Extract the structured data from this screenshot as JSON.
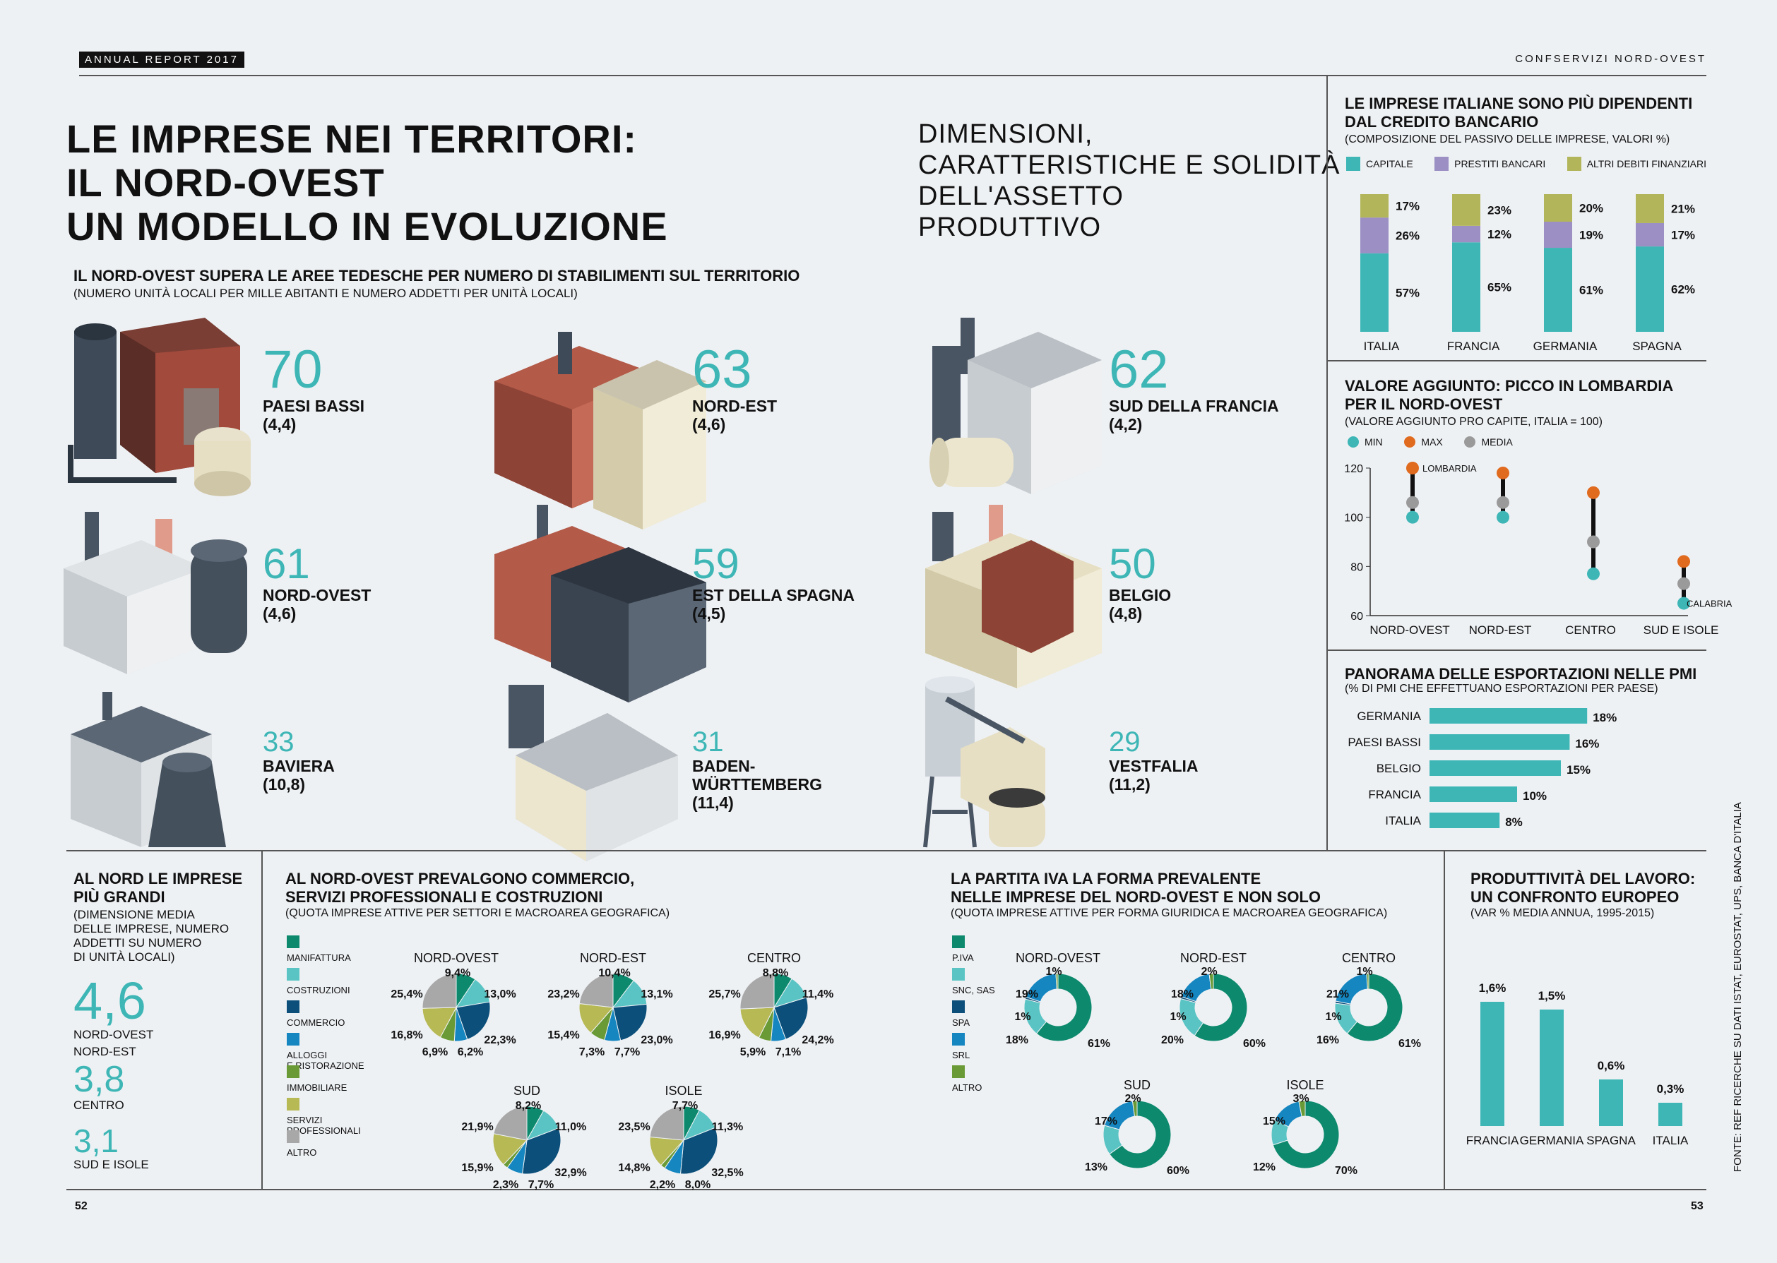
{
  "header": {
    "tag": "ANNUAL REPORT 2017",
    "right": "CONFSERVIZI NORD-OVEST"
  },
  "title": {
    "line1": "LE IMPRESE NEI TERRITORI:",
    "line2": "IL NORD-OVEST",
    "line3": "UN MODELLO IN EVOLUZIONE"
  },
  "subtitle": {
    "line1": "DIMENSIONI,",
    "line2": "CARATTERISTICHE E SOLIDITÀ",
    "line3": "DELL'ASSETTO",
    "line4": "PRODUTTIVO"
  },
  "regions": {
    "title": "IL NORD-OVEST SUPERA LE AREE TEDESCHE PER NUMERO DI STABILIMENTI SUL TERRITORIO",
    "sub": "(NUMERO UNITÀ LOCALI PER MILLE ABITANTI E NUMERO ADDETTI PER UNITÀ LOCALI)",
    "items": [
      {
        "value": "70",
        "name": "PAESI BASSI",
        "extra": "(4,4)"
      },
      {
        "value": "63",
        "name": "NORD-EST",
        "extra": "(4,6)"
      },
      {
        "value": "62",
        "name": "SUD DELLA FRANCIA",
        "extra": "(4,2)"
      },
      {
        "value": "61",
        "name": "NORD-OVEST",
        "extra": "(4,6)"
      },
      {
        "value": "59",
        "name": "EST DELLA SPAGNA",
        "extra": "(4,5)"
      },
      {
        "value": "50",
        "name": "BELGIO",
        "extra": "(4,8)"
      },
      {
        "value": "33",
        "name": "BAVIERA",
        "extra": "(10,8)"
      },
      {
        "value": "31",
        "name": "BADEN-",
        "name2": "WÜRTTEMBERG",
        "extra": "(11,4)"
      },
      {
        "value": "29",
        "name": "VESTFALIA",
        "extra": "(11,2)"
      }
    ]
  },
  "size": {
    "title1": "AL NORD LE IMPRESE",
    "title2": "PIÙ GRANDI",
    "sub1": "(DIMENSIONE MEDIA",
    "sub2": "DELLE IMPRESE, NUMERO",
    "sub3": "ADDETTI SU NUMERO",
    "sub4": "DI UNITÀ LOCALI)",
    "items": [
      {
        "value": "4,6",
        "label1": "NORD-OVEST",
        "label2": "NORD-EST"
      },
      {
        "value": "3,8",
        "label1": "CENTRO"
      },
      {
        "value": "3,1",
        "label1": "SUD E ISOLE"
      }
    ]
  },
  "page_left": "52",
  "page_right": "53",
  "source": "FONTE: REF RICERCHE SU DATI ISTAT, EUROSTAT, UPS, BANCA D'ITALIA",
  "colors": {
    "teal": "#3eb6b6",
    "purple": "#9b8fc4",
    "olive": "#b3b55a",
    "orange": "#e06a1e",
    "grey": "#9a9a9a",
    "dark_green": "#0d8a6e",
    "light_teal": "#5ac4c4",
    "dark_blue": "#0b4f7a",
    "blue": "#1586c0",
    "green": "#6a9a35",
    "olive_light": "#b7b955",
    "light_grey": "#a8a8a8"
  },
  "chart_data": [
    {
      "id": "credito",
      "type": "bar",
      "title": "LE IMPRESE ITALIANE SONO PIÙ DIPENDENTI DAL CREDITO BANCARIO",
      "title1": "LE IMPRESE ITALIANE SONO PIÙ DIPENDENTI",
      "title2": "DAL CREDITO BANCARIO",
      "subtitle": "(COMPOSIZIONE DEL PASSIVO DELLE IMPRESE, VALORI %)",
      "stacked": true,
      "categories": [
        "ITALIA",
        "FRANCIA",
        "GERMANIA",
        "SPAGNA"
      ],
      "series": [
        {
          "name": "CAPITALE",
          "values": [
            57,
            65,
            61,
            62
          ],
          "labels": [
            "57%",
            "65%",
            "61%",
            "62%"
          ]
        },
        {
          "name": "PRESTITI BANCARI",
          "values": [
            26,
            12,
            19,
            17
          ],
          "labels": [
            "26%",
            "12%",
            "19%",
            "17%"
          ]
        },
        {
          "name": "ALTRI DEBITI FINANZIARI",
          "values": [
            17,
            23,
            20,
            21
          ],
          "labels": [
            "17%",
            "23%",
            "20%",
            "21%"
          ]
        }
      ]
    },
    {
      "id": "valore",
      "type": "scatter",
      "title1": "VALORE AGGIUNTO: PICCO IN LOMBARDIA",
      "title2": "PER IL NORD-OVEST",
      "subtitle": "(VALORE AGGIUNTO PRO CAPITE, ITALIA = 100)",
      "legend": [
        "MIN",
        "MAX",
        "MEDIA"
      ],
      "categories": [
        "NORD-OVEST",
        "NORD-EST",
        "CENTRO",
        "SUD E ISOLE"
      ],
      "min": [
        100,
        100,
        77,
        65
      ],
      "max": [
        120,
        118,
        110,
        82
      ],
      "media": [
        106,
        106,
        90,
        73
      ],
      "ylim": [
        60,
        120
      ],
      "yticks": [
        "60",
        "80",
        "100",
        "120"
      ],
      "annotations": [
        {
          "cat": "NORD-OVEST",
          "text": "LOMBARDIA"
        },
        {
          "cat": "SUD E ISOLE",
          "text": "CALABRIA"
        }
      ]
    },
    {
      "id": "export",
      "type": "bar",
      "orientation": "horizontal",
      "title": "PANORAMA DELLE ESPORTAZIONI NELLE PMI",
      "subtitle": "(% DI PMI CHE EFFETTUANO ESPORTAZIONI PER PAESE)",
      "categories": [
        "GERMANIA",
        "PAESI BASSI",
        "BELGIO",
        "FRANCIA",
        "ITALIA"
      ],
      "values": [
        18,
        16,
        15,
        10,
        8
      ],
      "labels": [
        "18%",
        "16%",
        "15%",
        "10%",
        "8%"
      ]
    },
    {
      "id": "settori",
      "type": "pie",
      "title1": "AL NORD-OVEST PREVALGONO COMMERCIO,",
      "title2": "SERVIZI PROFESSIONALI E COSTRUZIONI",
      "subtitle": "(QUOTA IMPRESE ATTIVE PER SETTORI E MACROAREA GEOGRAFICA)",
      "legend": [
        "MANIFATTURA",
        "COSTRUZIONI",
        "COMMERCIO",
        "ALLOGGI",
        "E RISTORAZIONE",
        "IMMOBILIARE",
        "SERVIZI",
        "PROFESSIONALI",
        "ALTRO"
      ],
      "pies": [
        {
          "name": "NORD-OVEST",
          "values": [
            9.4,
            13.0,
            22.3,
            6.2,
            6.9,
            16.8,
            25.4
          ],
          "labels": [
            "9,4%",
            "13,0%",
            "22,3%",
            "6,2%",
            "6,9%",
            "16,8%",
            "25,4%"
          ]
        },
        {
          "name": "NORD-EST",
          "values": [
            10.4,
            13.1,
            23.0,
            7.7,
            7.3,
            15.4,
            23.2
          ],
          "labels": [
            "10,4%",
            "13,1%",
            "23,0%",
            "7,7%",
            "7,3%",
            "15,4%",
            "23,2%"
          ]
        },
        {
          "name": "CENTRO",
          "values": [
            8.8,
            11.4,
            24.2,
            7.1,
            5.9,
            16.9,
            25.7
          ],
          "labels": [
            "8,8%",
            "11,4%",
            "24,2%",
            "7,1%",
            "5,9%",
            "16,9%",
            "25,7%"
          ]
        },
        {
          "name": "SUD",
          "values": [
            8.2,
            11.0,
            32.9,
            7.7,
            2.3,
            15.9,
            21.9
          ],
          "labels": [
            "8,2%",
            "11,0%",
            "32,9%",
            "7,7%",
            "2,3%",
            "15,9%",
            "21,9%"
          ]
        },
        {
          "name": "ISOLE",
          "values": [
            7.7,
            11.3,
            32.5,
            8.0,
            2.2,
            14.8,
            23.5
          ],
          "labels": [
            "7,7%",
            "11,3%",
            "32,5%",
            "8,0%",
            "2,2%",
            "14,8%",
            "23,5%"
          ]
        }
      ]
    },
    {
      "id": "forma",
      "type": "pie",
      "title1": "LA PARTITA IVA LA FORMA PREVALENTE",
      "title2": "NELLE IMPRESE DEL NORD-OVEST E NON SOLO",
      "subtitle": "(QUOTA IMPRESE ATTIVE PER FORMA GIURIDICA E MACROAREA GEOGRAFICA)",
      "legend": [
        "P.IVA",
        "SNC, SAS",
        "SPA",
        "SRL",
        "ALTRO"
      ],
      "donuts": [
        {
          "name": "NORD-OVEST",
          "values": [
            61,
            18,
            1,
            19,
            1
          ],
          "labels": [
            "61%",
            "18%",
            "1%",
            "19%",
            "1%"
          ]
        },
        {
          "name": "NORD-EST",
          "values": [
            60,
            20,
            1,
            18,
            2
          ],
          "labels": [
            "60%",
            "20%",
            "1%",
            "18%",
            "2%"
          ]
        },
        {
          "name": "CENTRO",
          "values": [
            61,
            16,
            1,
            21,
            1
          ],
          "labels": [
            "61%",
            "16%",
            "1%",
            "21%",
            "1%"
          ]
        },
        {
          "name": "SUD",
          "values": [
            60,
            13,
            0,
            17,
            2
          ],
          "labels": [
            "60%",
            "13%",
            "",
            "17%",
            "2%"
          ]
        },
        {
          "name": "ISOLE",
          "values": [
            70,
            12,
            0,
            15,
            3
          ],
          "labels": [
            "70%",
            "12%",
            "",
            "15%",
            "3%"
          ]
        }
      ]
    },
    {
      "id": "produttivita",
      "type": "bar",
      "title1": "PRODUTTIVITÀ DEL LAVORO:",
      "title2": "UN CONFRONTO EUROPEO",
      "subtitle": "(VAR % MEDIA ANNUA, 1995-2015)",
      "categories": [
        "FRANCIA",
        "GERMANIA",
        "SPAGNA",
        "ITALIA"
      ],
      "values": [
        1.6,
        1.5,
        0.6,
        0.3
      ],
      "labels": [
        "1,6%",
        "1,5%",
        "0,6%",
        "0,3%"
      ]
    }
  ]
}
